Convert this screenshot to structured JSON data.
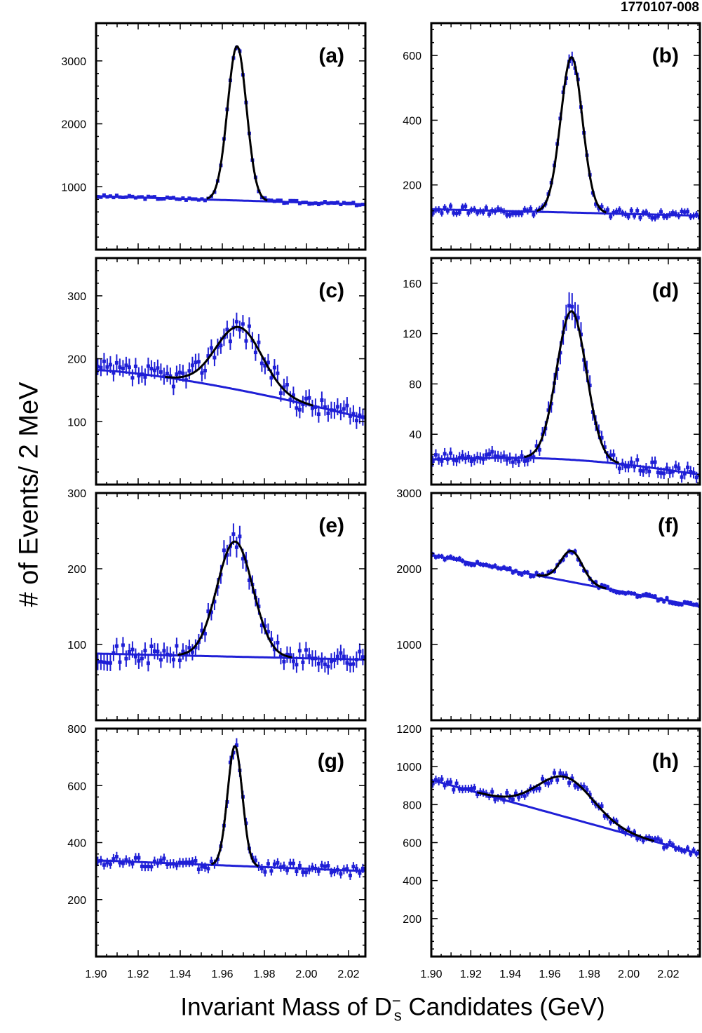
{
  "figure": {
    "id_label": "1770107-008",
    "ylabel": "# of Events/ 2 MeV",
    "xlabel_prefix": "Invariant Mass of D",
    "xlabel_sub": "s",
    "xlabel_sup": "−",
    "xlabel_suffix": " Candidates (GeV)"
  },
  "colors": {
    "data": "#1f1fd6",
    "fit": "#000000",
    "background_fit": "#1f1fd6",
    "frame": "#000000"
  },
  "chart_data": [
    {
      "type": "scatter",
      "label": "(a)",
      "xlim": [
        1.9,
        2.028
      ],
      "ylim": [
        0,
        3600
      ],
      "yticks": [
        1000,
        2000,
        3000
      ],
      "xtick_labels_shown": false,
      "fit": {
        "peak_mass": 1.967,
        "peak_amplitude": 2450,
        "sigma": 0.0045,
        "shape": "gaussian"
      },
      "background": {
        "start": 850,
        "end": 720
      },
      "noise": 25
    },
    {
      "type": "scatter",
      "label": "(b)",
      "xlim": [
        1.9,
        2.036
      ],
      "ylim": [
        0,
        700
      ],
      "yticks": [
        200,
        400,
        600
      ],
      "xtick_labels_shown": false,
      "fit": {
        "peak_mass": 1.971,
        "peak_amplitude": 480,
        "sigma": 0.0055,
        "shape": "gaussian"
      },
      "background": {
        "start": 125,
        "end": 105
      },
      "noise": 12
    },
    {
      "type": "scatter",
      "label": "(c)",
      "xlim": [
        1.9,
        2.028
      ],
      "ylim": [
        0,
        360
      ],
      "yticks": [
        100,
        200,
        300
      ],
      "xtick_labels_shown": false,
      "fit": {
        "peak_mass": 1.968,
        "peak_amplitude": 100,
        "sigma": 0.011,
        "shape": "gaussian"
      },
      "background": {
        "start": 182,
        "end": 105,
        "curve": "falling"
      },
      "noise": 15
    },
    {
      "type": "scatter",
      "label": "(d)",
      "xlim": [
        1.9,
        2.036
      ],
      "ylim": [
        0,
        180
      ],
      "yticks": [
        40,
        80,
        120,
        160
      ],
      "xtick_labels_shown": false,
      "fit": {
        "peak_mass": 1.971,
        "peak_amplitude": 118,
        "sigma": 0.0075,
        "shape": "gaussian"
      },
      "background": {
        "start": 20,
        "end": 8,
        "curve": "hump"
      },
      "noise": 5
    },
    {
      "type": "scatter",
      "label": "(e)",
      "xlim": [
        1.9,
        2.028
      ],
      "ylim": [
        0,
        300
      ],
      "yticks": [
        100,
        200,
        300
      ],
      "xtick_labels_shown": false,
      "fit": {
        "peak_mass": 1.966,
        "peak_amplitude": 152,
        "sigma": 0.0085,
        "shape": "gaussian"
      },
      "background": {
        "start": 88,
        "end": 80
      },
      "noise": 12
    },
    {
      "type": "scatter",
      "label": "(f)",
      "xlim": [
        1.9,
        2.036
      ],
      "ylim": [
        0,
        3000
      ],
      "yticks": [
        1000,
        2000,
        3000
      ],
      "xtick_labels_shown": false,
      "fit": {
        "peak_mass": 1.971,
        "peak_amplitude": 410,
        "sigma": 0.0055,
        "shape": "gaussian"
      },
      "background": {
        "start": 2180,
        "end": 1500
      },
      "noise": 30
    },
    {
      "type": "scatter",
      "label": "(g)",
      "xlim": [
        1.9,
        2.028
      ],
      "ylim": [
        0,
        800
      ],
      "yticks": [
        200,
        400,
        600,
        800
      ],
      "xtick_labels_shown": true,
      "xticks": [
        1.9,
        1.92,
        1.94,
        1.96,
        1.98,
        2.0,
        2.02
      ],
      "xtick_labels": [
        "1.90",
        "1.92",
        "1.94",
        "1.96",
        "1.98",
        "2.00",
        "2.02"
      ],
      "fit": {
        "peak_mass": 1.966,
        "peak_amplitude": 420,
        "sigma": 0.0035,
        "shape": "gaussian"
      },
      "background": {
        "start": 338,
        "end": 300
      },
      "noise": 18
    },
    {
      "type": "scatter",
      "label": "(h)",
      "xlim": [
        1.9,
        2.036
      ],
      "ylim": [
        0,
        1200
      ],
      "yticks": [
        200,
        400,
        600,
        800,
        1000,
        1200
      ],
      "xtick_labels_shown": true,
      "xticks": [
        1.9,
        1.92,
        1.94,
        1.96,
        1.98,
        2.0,
        2.02
      ],
      "xtick_labels": [
        "1.90",
        "1.92",
        "1.94",
        "1.96",
        "1.98",
        "2.00",
        "2.02"
      ],
      "fit": {
        "peak_mass": 1.968,
        "peak_amplitude": 210,
        "sigma": 0.014,
        "shape": "gaussian"
      },
      "background": {
        "start": 930,
        "end": 540
      },
      "noise": 20
    }
  ]
}
